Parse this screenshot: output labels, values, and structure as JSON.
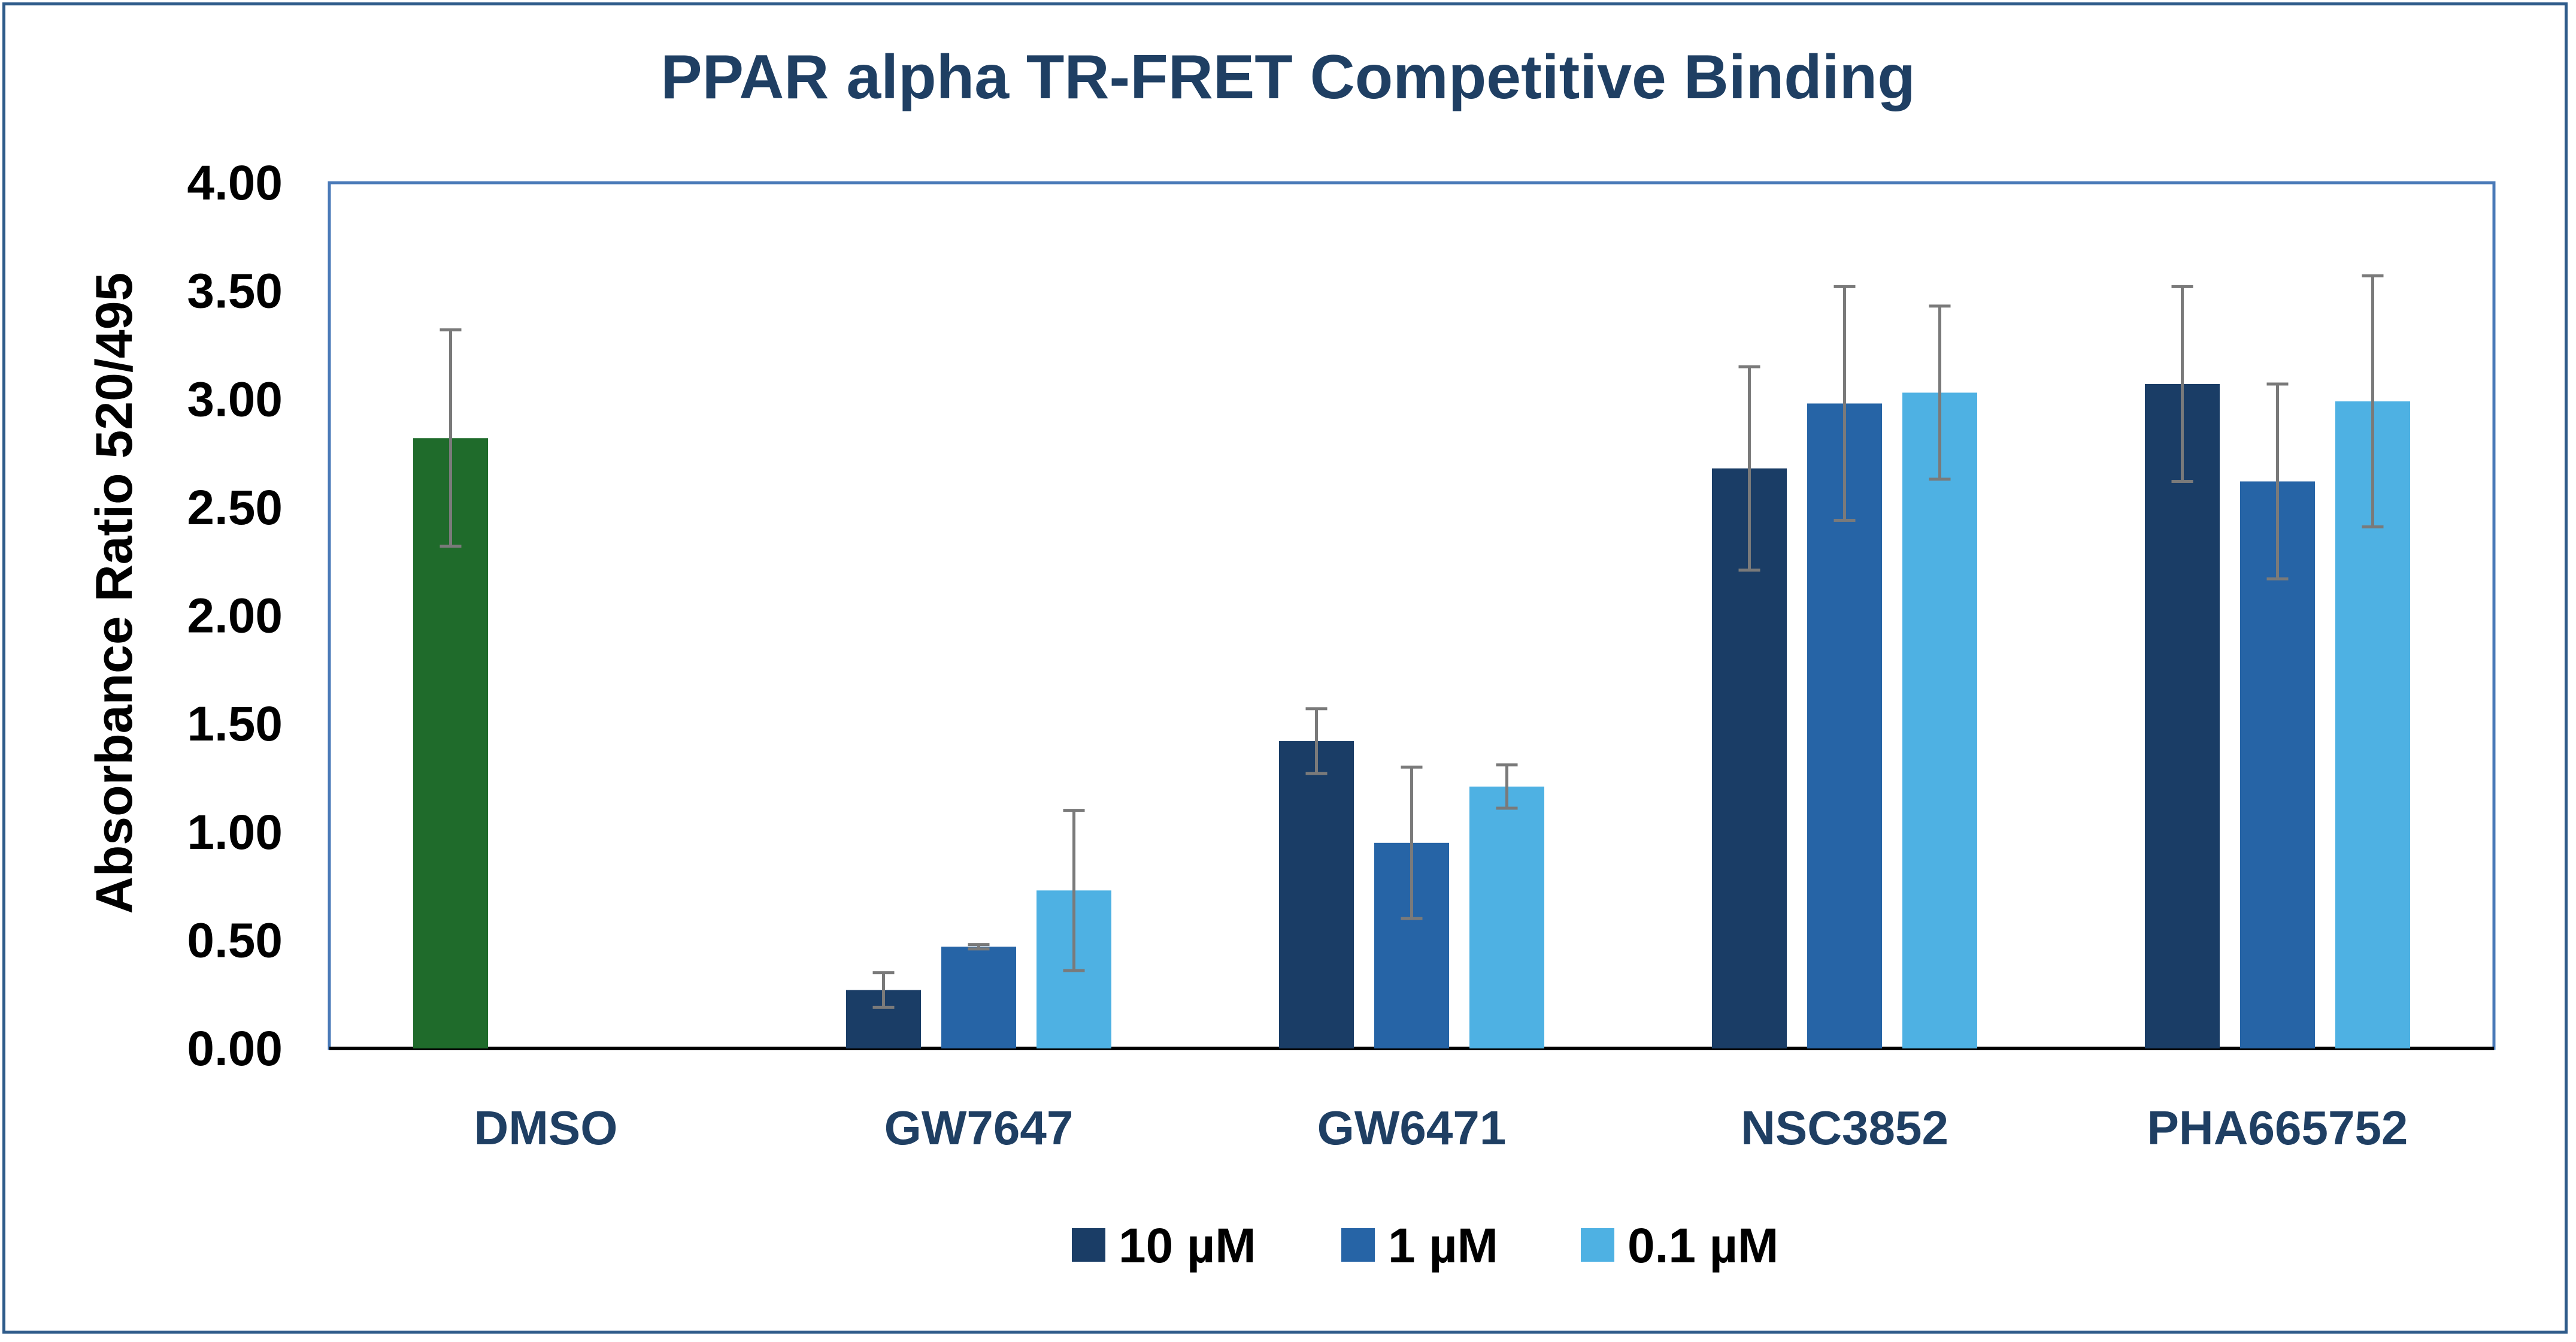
{
  "chart_data": {
    "type": "bar",
    "title": "PPAR alpha TR-FRET Competitive Binding",
    "xlabel": "",
    "ylabel": "Absorbance Ratio 520/495",
    "ylim": [
      0,
      4
    ],
    "yticks": [
      "0.00",
      "0.50",
      "1.00",
      "1.50",
      "2.00",
      "2.50",
      "3.00",
      "3.50",
      "4.00"
    ],
    "grid": false,
    "legend_position": "bottom",
    "categories": [
      "DMSO",
      "GW7647",
      "GW6471",
      "NSC3852",
      "PHA665752"
    ],
    "control": {
      "name": "DMSO",
      "value": 2.82,
      "error": 0.5,
      "color": "#1f6b2b"
    },
    "series": [
      {
        "name": "10 µM",
        "color": "#1a3d66",
        "values": [
          null,
          0.27,
          1.42,
          2.68,
          3.07
        ],
        "errors": [
          null,
          0.08,
          0.15,
          0.47,
          0.45
        ]
      },
      {
        "name": "1 µM",
        "color": "#2664a6",
        "values": [
          null,
          0.47,
          0.95,
          2.98,
          2.62
        ],
        "errors": [
          null,
          0.01,
          0.35,
          0.54,
          0.45
        ]
      },
      {
        "name": "0.1 µM",
        "color": "#4eb1e3",
        "values": [
          null,
          0.73,
          1.21,
          3.03,
          2.99
        ],
        "errors": [
          null,
          0.37,
          0.1,
          0.4,
          0.58
        ]
      }
    ]
  }
}
